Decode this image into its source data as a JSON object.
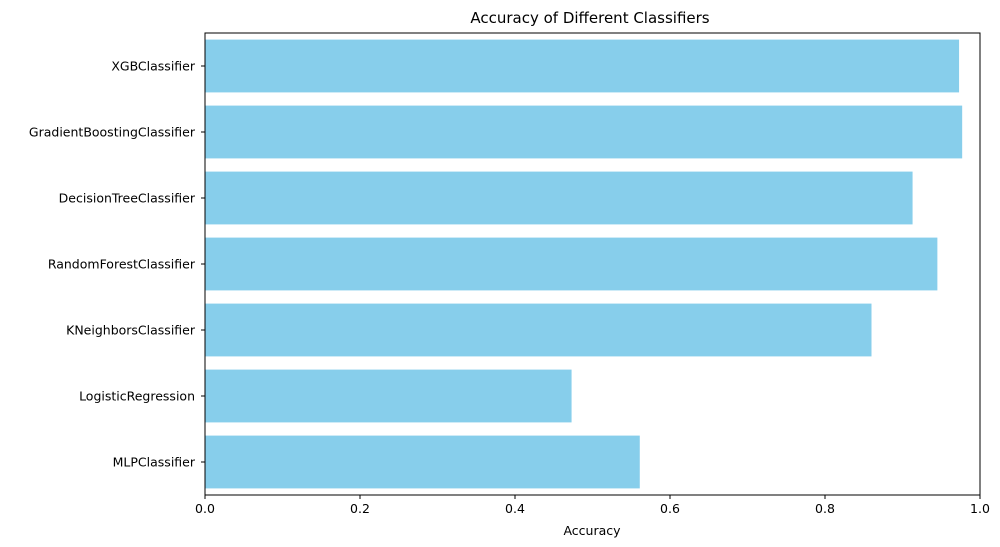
{
  "chart_data": {
    "type": "bar",
    "orientation": "horizontal",
    "title": "Accuracy of Different Classifiers",
    "xlabel": "Accuracy",
    "ylabel": "",
    "categories": [
      "XGBClassifier",
      "GradientBoostingClassifier",
      "DecisionTreeClassifier",
      "RandomForestClassifier",
      "KNeighborsClassifier",
      "LogisticRegression",
      "MLPClassifier"
    ],
    "values": [
      0.973,
      0.977,
      0.913,
      0.945,
      0.86,
      0.473,
      0.561
    ],
    "xlim": [
      0,
      1.0
    ],
    "xticks": [
      "0.0",
      "0.2",
      "0.4",
      "0.6",
      "0.8",
      "1.0"
    ],
    "xtick_values": [
      0,
      0.2,
      0.4,
      0.6,
      0.8,
      1.0
    ],
    "bar_color": "#87ceeb",
    "grid": false,
    "legend": "none"
  }
}
